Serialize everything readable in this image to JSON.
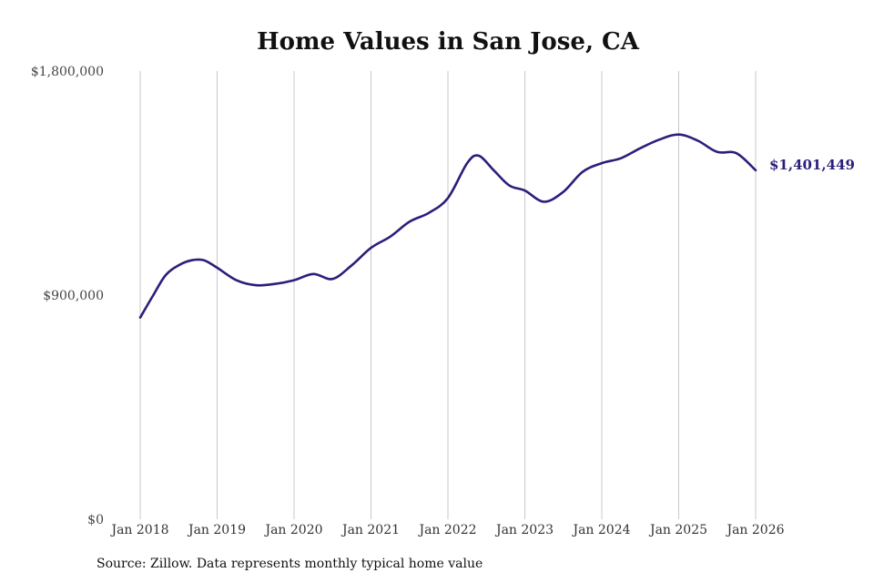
{
  "chart_data": {
    "type": "line",
    "title": "Home Values in San Jose, CA",
    "xlabel": "",
    "ylabel": "",
    "ylim": [
      0,
      1800000
    ],
    "yticks": [
      {
        "value": 0,
        "label": "$0"
      },
      {
        "value": 900000,
        "label": "$900,000"
      },
      {
        "value": 1800000,
        "label": "$1,800,000"
      }
    ],
    "xticks": [
      {
        "value": 2018.0,
        "label": "Jan 2018"
      },
      {
        "value": 2019.0,
        "label": "Jan 2019"
      },
      {
        "value": 2020.0,
        "label": "Jan 2020"
      },
      {
        "value": 2021.0,
        "label": "Jan 2021"
      },
      {
        "value": 2022.0,
        "label": "Jan 2022"
      },
      {
        "value": 2023.0,
        "label": "Jan 2023"
      },
      {
        "value": 2024.0,
        "label": "Jan 2024"
      },
      {
        "value": 2025.0,
        "label": "Jan 2025"
      },
      {
        "value": 2026.0,
        "label": "Jan 2026"
      }
    ],
    "grid": "vertical",
    "line_color": "#2a1f7a",
    "series": [
      {
        "x": [
          2018.0,
          2018.17,
          2018.33,
          2018.5,
          2018.67,
          2018.83,
          2019.0,
          2019.25,
          2019.5,
          2019.75,
          2020.0,
          2020.25,
          2020.5,
          2020.75,
          2021.0,
          2021.25,
          2021.5,
          2021.75,
          2022.0,
          2022.25,
          2022.4,
          2022.6,
          2022.8,
          2023.0,
          2023.25,
          2023.5,
          2023.75,
          2024.0,
          2024.25,
          2024.5,
          2024.75,
          2025.0,
          2025.25,
          2025.5,
          2025.75,
          2026.0
        ],
        "y": [
          810000,
          900000,
          980000,
          1020000,
          1040000,
          1040000,
          1010000,
          960000,
          940000,
          945000,
          960000,
          985000,
          965000,
          1020000,
          1090000,
          1135000,
          1195000,
          1230000,
          1290000,
          1430000,
          1460000,
          1400000,
          1340000,
          1320000,
          1275000,
          1315000,
          1395000,
          1430000,
          1450000,
          1490000,
          1525000,
          1545000,
          1520000,
          1475000,
          1470000,
          1401449
        ]
      }
    ],
    "end_label": "$1,401,449"
  },
  "source_note": "Source: Zillow. Data represents monthly typical home value"
}
